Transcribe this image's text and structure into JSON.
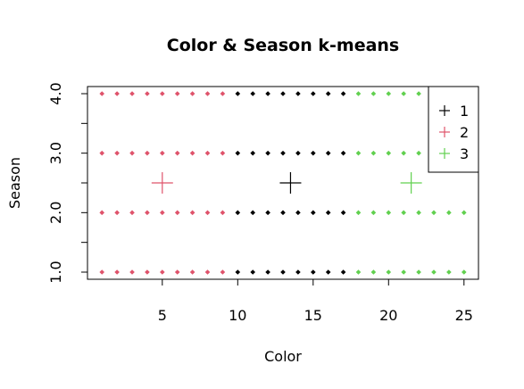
{
  "chart_data": {
    "type": "scatter",
    "title": "Color & Season k-means",
    "xlabel": "Color",
    "ylabel": "Season",
    "xlim": [
      0.04,
      25.96
    ],
    "ylim": [
      0.88,
      4.12
    ],
    "x_ticks": [
      5,
      10,
      15,
      20,
      25
    ],
    "x_tick_labels": [
      "5",
      "10",
      "15",
      "20",
      "25"
    ],
    "y_ticks": [
      1,
      2,
      3,
      4
    ],
    "y_tick_labels": [
      "1.0",
      "2.0",
      "3.0",
      "4.0"
    ],
    "y_minor_ticks": [
      1.5,
      2.5,
      3.5
    ],
    "grid": false,
    "legend_position": "top-right",
    "series": [
      {
        "name": "1",
        "color": "#000000",
        "x_range": [
          10,
          17
        ],
        "y_values": [
          1,
          2,
          3,
          4
        ]
      },
      {
        "name": "2",
        "color": "#DF536B",
        "x_range": [
          1,
          9
        ],
        "y_values": [
          1,
          2,
          3,
          4
        ]
      },
      {
        "name": "3",
        "color": "#61D04F",
        "x_range": [
          18,
          25
        ],
        "y_values": [
          1,
          2,
          3,
          4
        ]
      }
    ],
    "centers": [
      {
        "cluster": "1",
        "x": 13.5,
        "y": 2.5,
        "color": "#000000"
      },
      {
        "cluster": "2",
        "x": 5.0,
        "y": 2.5,
        "color": "#DF536B"
      },
      {
        "cluster": "3",
        "x": 21.5,
        "y": 2.5,
        "color": "#61D04F"
      }
    ]
  }
}
